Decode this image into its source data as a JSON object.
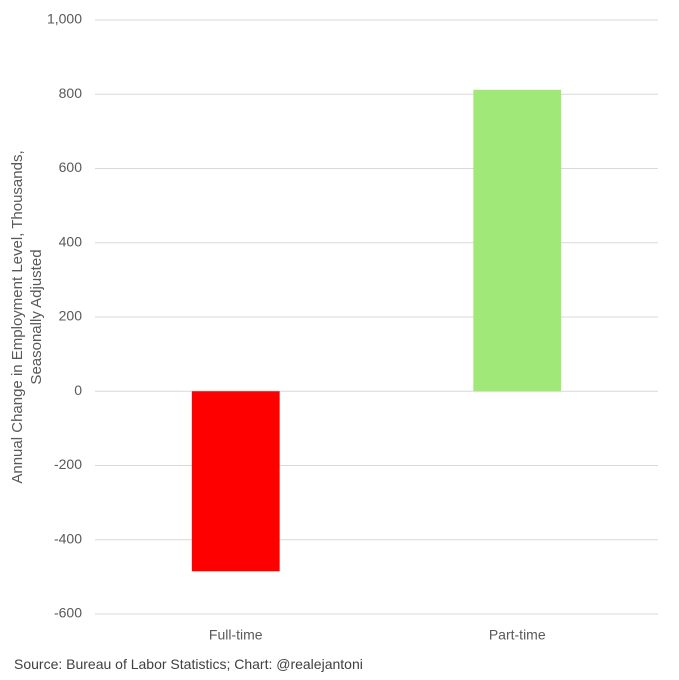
{
  "chart_data": {
    "type": "bar",
    "y_label": "Annual Change in Employment Level, Thousands, Seasonally Adjusted",
    "source": "Source: Bureau of Labor Statistics; Chart: @realejantoni",
    "categories": [
      "Full-time",
      "Part-time"
    ],
    "values": [
      -485,
      812
    ],
    "colors": [
      "#ff0000",
      "#a0e878"
    ],
    "ylim": [
      -600,
      1000
    ],
    "yticks": [
      -600,
      -400,
      -200,
      0,
      200,
      400,
      600,
      800,
      {
        "value": 1000,
        "label": "1,000"
      }
    ],
    "grid": true
  }
}
